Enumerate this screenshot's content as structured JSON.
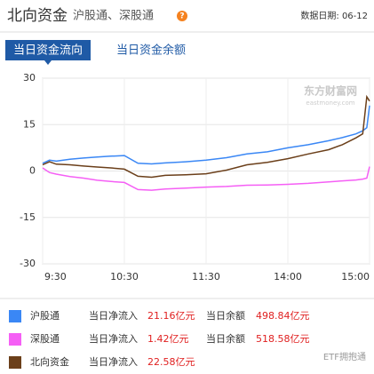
{
  "header": {
    "title": "北向资金",
    "subtitle": "沪股通、深股通",
    "help": "?",
    "date_label": "数据日期: 06-12"
  },
  "tabs": [
    "当日资金流向",
    "当日资金余额"
  ],
  "chart_data": {
    "type": "line",
    "watermark": "东方财富网",
    "watermark_sub": "eastmoney.com",
    "x": [
      0,
      5,
      10,
      20,
      30,
      40,
      50,
      60,
      70,
      80,
      90,
      105,
      120,
      135,
      150,
      165,
      180,
      195,
      210,
      220,
      230,
      235,
      238,
      240
    ],
    "xlim": [
      0,
      240
    ],
    "xticks": [
      {
        "value": 0,
        "label": "9:30"
      },
      {
        "value": 60,
        "label": "10:30"
      },
      {
        "value": 120,
        "label": "11:30"
      },
      {
        "value": 180,
        "label": "14:00"
      },
      {
        "value": 240,
        "label": "15:00"
      }
    ],
    "ylim": [
      -30,
      30
    ],
    "yticks": [
      -30,
      -15,
      0,
      15,
      30
    ],
    "grid": true,
    "net_inflow_text": "当日净流入",
    "balance_text": "当日余额",
    "series": [
      {
        "name": "沪股通",
        "color": "#3a87f5",
        "values": [
          2.5,
          3.5,
          3.2,
          3.8,
          4.2,
          4.5,
          4.8,
          5.0,
          2.5,
          2.3,
          2.6,
          3.0,
          3.5,
          4.3,
          5.5,
          6.2,
          7.5,
          8.5,
          9.8,
          10.8,
          12.0,
          13.0,
          14.0,
          21.16
        ],
        "net_inflow": "21.16亿元",
        "balance": "498.84亿元"
      },
      {
        "name": "深股通",
        "color": "#f55ff5",
        "values": [
          1.0,
          -0.5,
          -1.0,
          -1.8,
          -2.3,
          -3.0,
          -3.4,
          -3.7,
          -6.0,
          -6.2,
          -5.8,
          -5.5,
          -5.2,
          -5.0,
          -4.6,
          -4.5,
          -4.3,
          -4.0,
          -3.5,
          -3.2,
          -2.9,
          -2.6,
          -2.3,
          1.42
        ],
        "net_inflow": "1.42亿元",
        "balance": "518.58亿元"
      },
      {
        "name": "北向资金",
        "color": "#6b3f1a",
        "values": [
          2.0,
          3.0,
          2.2,
          2.0,
          1.6,
          1.3,
          1.0,
          0.6,
          -1.7,
          -2.0,
          -1.4,
          -1.2,
          -0.9,
          0.3,
          2.0,
          2.8,
          4.0,
          5.5,
          6.9,
          8.5,
          10.7,
          12.0,
          24.0,
          22.58
        ],
        "net_inflow": "22.58亿元"
      }
    ]
  },
  "footer_watermark": "ETF拥抱通"
}
